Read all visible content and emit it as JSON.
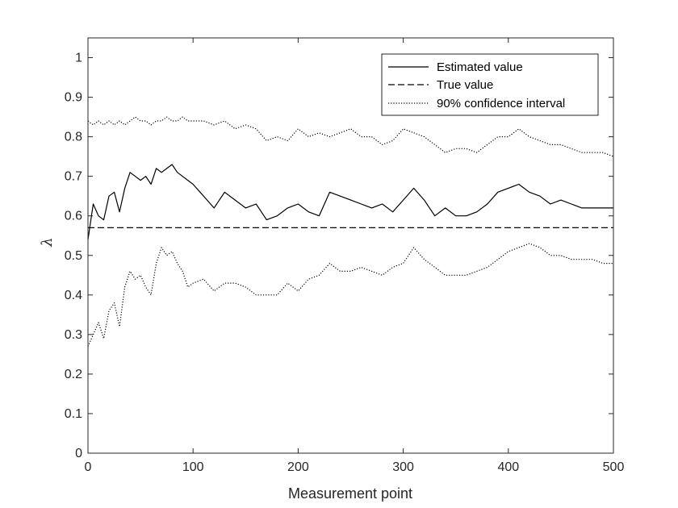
{
  "chart_data": {
    "type": "line",
    "xlabel": "Measurement point",
    "ylabel": "λ",
    "xlim": [
      0,
      500
    ],
    "ylim": [
      0,
      1.05
    ],
    "x_ticks": [
      "0",
      "100",
      "200",
      "300",
      "400",
      "500"
    ],
    "y_ticks": [
      "0",
      "0.1",
      "0.2",
      "0.3",
      "0.4",
      "0.5",
      "0.6",
      "0.7",
      "0.8",
      "0.9",
      "1"
    ],
    "grid": false,
    "legend_position": "top-right",
    "x": [
      0,
      5,
      10,
      15,
      20,
      25,
      30,
      35,
      40,
      45,
      50,
      55,
      60,
      65,
      70,
      75,
      80,
      85,
      90,
      95,
      100,
      110,
      120,
      130,
      140,
      150,
      160,
      170,
      180,
      190,
      200,
      210,
      220,
      230,
      240,
      250,
      260,
      270,
      280,
      290,
      300,
      310,
      320,
      330,
      340,
      350,
      360,
      370,
      380,
      390,
      400,
      410,
      420,
      430,
      440,
      450,
      460,
      470,
      480,
      490,
      500
    ],
    "series": [
      {
        "name": "Estimated value",
        "line_style": "solid",
        "values": [
          0.54,
          0.63,
          0.6,
          0.59,
          0.65,
          0.66,
          0.61,
          0.67,
          0.71,
          0.7,
          0.69,
          0.7,
          0.68,
          0.72,
          0.71,
          0.72,
          0.73,
          0.71,
          0.7,
          0.69,
          0.68,
          0.65,
          0.62,
          0.66,
          0.64,
          0.62,
          0.63,
          0.59,
          0.6,
          0.62,
          0.63,
          0.61,
          0.6,
          0.66,
          0.65,
          0.64,
          0.63,
          0.62,
          0.63,
          0.61,
          0.64,
          0.67,
          0.64,
          0.6,
          0.62,
          0.6,
          0.6,
          0.61,
          0.63,
          0.66,
          0.67,
          0.68,
          0.66,
          0.65,
          0.63,
          0.64,
          0.63,
          0.62,
          0.62,
          0.62,
          0.62
        ]
      },
      {
        "name": "True value",
        "line_style": "dashed",
        "values": [
          0.57,
          0.57,
          0.57,
          0.57,
          0.57,
          0.57,
          0.57,
          0.57,
          0.57,
          0.57,
          0.57,
          0.57,
          0.57,
          0.57,
          0.57,
          0.57,
          0.57,
          0.57,
          0.57,
          0.57,
          0.57,
          0.57,
          0.57,
          0.57,
          0.57,
          0.57,
          0.57,
          0.57,
          0.57,
          0.57,
          0.57,
          0.57,
          0.57,
          0.57,
          0.57,
          0.57,
          0.57,
          0.57,
          0.57,
          0.57,
          0.57,
          0.57,
          0.57,
          0.57,
          0.57,
          0.57,
          0.57,
          0.57,
          0.57,
          0.57,
          0.57,
          0.57,
          0.57,
          0.57,
          0.57,
          0.57,
          0.57,
          0.57,
          0.57,
          0.57,
          0.57
        ]
      },
      {
        "name": "90% confidence interval",
        "line_style": "dotted",
        "values": [
          0.84,
          0.83,
          0.84,
          0.83,
          0.84,
          0.83,
          0.84,
          0.83,
          0.84,
          0.85,
          0.84,
          0.84,
          0.83,
          0.84,
          0.84,
          0.85,
          0.84,
          0.84,
          0.85,
          0.84,
          0.84,
          0.84,
          0.83,
          0.84,
          0.82,
          0.83,
          0.82,
          0.79,
          0.8,
          0.79,
          0.82,
          0.8,
          0.81,
          0.8,
          0.81,
          0.82,
          0.8,
          0.8,
          0.78,
          0.79,
          0.82,
          0.81,
          0.8,
          0.78,
          0.76,
          0.77,
          0.77,
          0.76,
          0.78,
          0.8,
          0.8,
          0.82,
          0.8,
          0.79,
          0.78,
          0.78,
          0.77,
          0.76,
          0.76,
          0.76,
          0.75
        ]
      },
      {
        "name": "90% confidence interval",
        "line_style": "dotted",
        "values": [
          0.27,
          0.3,
          0.33,
          0.29,
          0.36,
          0.38,
          0.32,
          0.42,
          0.46,
          0.44,
          0.45,
          0.42,
          0.4,
          0.48,
          0.52,
          0.5,
          0.51,
          0.48,
          0.46,
          0.42,
          0.43,
          0.44,
          0.41,
          0.43,
          0.43,
          0.42,
          0.4,
          0.4,
          0.4,
          0.43,
          0.41,
          0.44,
          0.45,
          0.48,
          0.46,
          0.46,
          0.47,
          0.46,
          0.45,
          0.47,
          0.48,
          0.52,
          0.49,
          0.47,
          0.45,
          0.45,
          0.45,
          0.46,
          0.47,
          0.49,
          0.51,
          0.52,
          0.53,
          0.52,
          0.5,
          0.5,
          0.49,
          0.49,
          0.49,
          0.48,
          0.48
        ]
      }
    ]
  },
  "legend": {
    "items": [
      {
        "label": "Estimated value",
        "style": "solid"
      },
      {
        "label": "True value",
        "style": "dashed"
      },
      {
        "label": "90% confidence interval",
        "style": "dotted"
      }
    ]
  }
}
